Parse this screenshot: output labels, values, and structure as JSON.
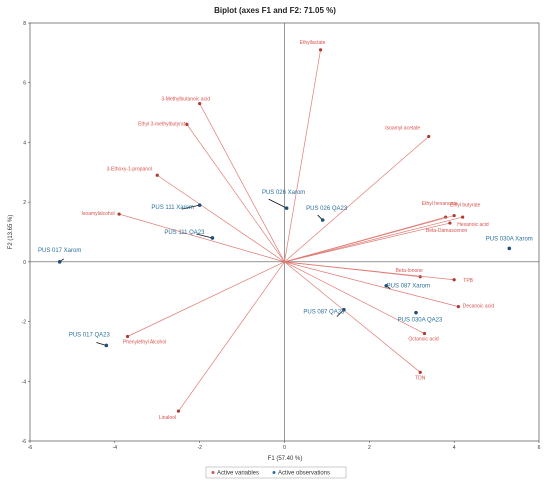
{
  "chart_data": {
    "type": "scatter",
    "title": "Biplot (axes F1 and F2: 71.05 %)",
    "xlabel": "F1 (57.40 %)",
    "ylabel": "F2 (13.65 %)",
    "xlim": [
      -6,
      6
    ],
    "ylim": [
      -6,
      8
    ],
    "x_ticks": [
      -6,
      -4,
      -2,
      0,
      2,
      4,
      6
    ],
    "y_ticks": [
      -6,
      -4,
      -2,
      0,
      2,
      4,
      6,
      8
    ],
    "grid": false,
    "legend_position": "bottom-center",
    "legend": [
      {
        "label": "Active variables",
        "color": "#d9534f"
      },
      {
        "label": "Active observations",
        "color": "#2a6f9b"
      }
    ],
    "variables": [
      {
        "name": "Ethyllactate",
        "x": 0.85,
        "y": 7.1
      },
      {
        "name": "3-Methylbutanoic acid",
        "x": -2.0,
        "y": 5.3
      },
      {
        "name": "Ethyl 3-methylbutyrate",
        "x": -2.3,
        "y": 4.6
      },
      {
        "name": "Isoamyl acetate",
        "x": 3.4,
        "y": 4.2
      },
      {
        "name": "3-Ethoxy-1-propanol",
        "x": -3.0,
        "y": 2.9
      },
      {
        "name": "Ethyl hexanoate",
        "x": 3.8,
        "y": 1.5
      },
      {
        "name": "Ethyl butyrate",
        "x": 4.0,
        "y": 1.55
      },
      {
        "name": "Hexanoic acid",
        "x": 4.2,
        "y": 1.5
      },
      {
        "name": "Beta-Damascenon",
        "x": 3.9,
        "y": 1.3
      },
      {
        "name": "Isoamylalcohol",
        "x": -3.9,
        "y": 1.6
      },
      {
        "name": "Beta-Ionone",
        "x": 3.2,
        "y": -0.5
      },
      {
        "name": "TPB",
        "x": 4.0,
        "y": -0.6
      },
      {
        "name": "Decanoic acid",
        "x": 4.1,
        "y": -1.5
      },
      {
        "name": "Octanoic acid",
        "x": 3.3,
        "y": -2.4
      },
      {
        "name": "TDN",
        "x": 3.2,
        "y": -3.7
      },
      {
        "name": "Phenylethyl Alcohol",
        "x": -3.7,
        "y": -2.5
      },
      {
        "name": "Linalool",
        "x": -2.5,
        "y": -5.0
      }
    ],
    "observations": [
      {
        "name": "PUS 026 Xarom",
        "x": 0.05,
        "y": 1.8
      },
      {
        "name": "PUS 026 QA23",
        "x": 0.9,
        "y": 1.4
      },
      {
        "name": "PUS 111 Xarom",
        "x": -2.0,
        "y": 1.9
      },
      {
        "name": "PUS 111 QA23",
        "x": -1.7,
        "y": 0.8
      },
      {
        "name": "PUS 017 Xarom",
        "x": -5.3,
        "y": 0.0
      },
      {
        "name": "PUS 030A Xarom",
        "x": 5.3,
        "y": 0.45
      },
      {
        "name": "PUS 087 Xarom",
        "x": 2.4,
        "y": -0.8
      },
      {
        "name": "PUS 087 QA23",
        "x": 1.4,
        "y": -1.6
      },
      {
        "name": "PUS 030A QA23",
        "x": 3.1,
        "y": -1.7
      },
      {
        "name": "PUS 017 QA23",
        "x": -4.2,
        "y": -2.8
      }
    ]
  }
}
